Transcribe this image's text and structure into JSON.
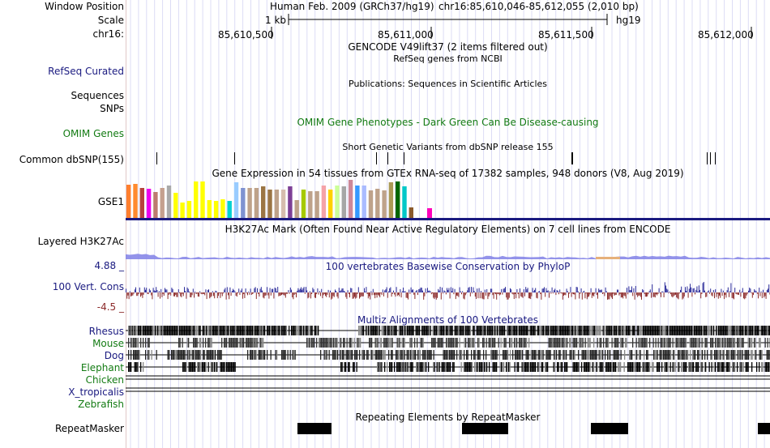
{
  "header": {
    "window_position_label": "Window Position",
    "scale_label": "Scale",
    "chrom_label": "chr16:",
    "assembly": "Human Feb. 2009 (GRCh37/hg19)",
    "position": "chr16:85,610,046-85,612,055 (2,010 bp)",
    "scale_text": "1 kb",
    "scale_db": "hg19",
    "ticks": [
      "85,610,500",
      "85,611,000",
      "85,611,500",
      "85,612,000"
    ]
  },
  "tracks": {
    "gencode_title": "GENCODE V49lift37 (2 items filtered out)",
    "refseq_label": "RefSeq Curated",
    "refseq_title": "RefSeq genes from NCBI",
    "publications_title": "Publications: Sequences in Scientific Articles",
    "sequences_label": "Sequences",
    "snps_label": "SNPs",
    "omim_label": "OMIM Genes",
    "omim_title": "OMIM Gene Phenotypes - Dark Green Can Be Disease-causing",
    "dbsnp_title": "Short Genetic Variants from dbSNP release 155",
    "dbsnp_label": "Common dbSNP(155)",
    "gtex_title": "Gene Expression in 54 tissues from GTEx RNA-seq of 17382 samples, 948 donors (V8, Aug 2019)",
    "gtex_label": "GSE1",
    "h3k27_title": "H3K27Ac Mark (Often Found Near Active Regulatory Elements) on 7 cell lines from ENCODE",
    "h3k27_label": "Layered H3K27Ac",
    "cons_max": "4.88 _",
    "cons_min": "-4.5 _",
    "cons_label": "100 Vert. Cons",
    "cons_title": "100 vertebrates Basewise Conservation by PhyloP",
    "multiz_title": "Multiz Alignments of 100 Vertebrates",
    "species": [
      "Rhesus",
      "Mouse",
      "Dog",
      "Elephant",
      "Chicken",
      "X_tropicalis",
      "Zebrafish"
    ],
    "repeat_title": "Repeating Elements by RepeatMasker",
    "repeat_label": "RepeatMasker"
  },
  "colors": {
    "navy": "#1a1a80",
    "green": "#137b13",
    "gtex": [
      "#FF7F2E",
      "#FF8A2E",
      "#B7413E",
      "#EE00EE",
      "#BD7B6F",
      "#C5A08E",
      "#A9A9A9",
      "#FFFF00",
      "#FFFF00",
      "#FFFF00",
      "#FFFF00",
      "#FFFF00",
      "#FFFF00",
      "#FFFF00",
      "#FFFF00",
      "#00D1D1",
      "#99CCFF",
      "#7F93D1",
      "#BEA28A",
      "#BEA28A",
      "#9B7544",
      "#9B7544",
      "#BEA28A",
      "#D6BDAE",
      "#7D3F96",
      "#BEA28A",
      "#A6C900",
      "#BEA28A",
      "#BEA28A",
      "#F5A3A8",
      "#FFD100",
      "#CCFF99",
      "#A6A6A6",
      "#CC8899",
      "#3399FF",
      "#AABBFF",
      "#BEA28A",
      "#BEA28A",
      "#BEA28A",
      "#AA9A55",
      "#006600",
      "#00C8C8",
      "#8B5A2B",
      "#FF00BB"
    ]
  }
}
